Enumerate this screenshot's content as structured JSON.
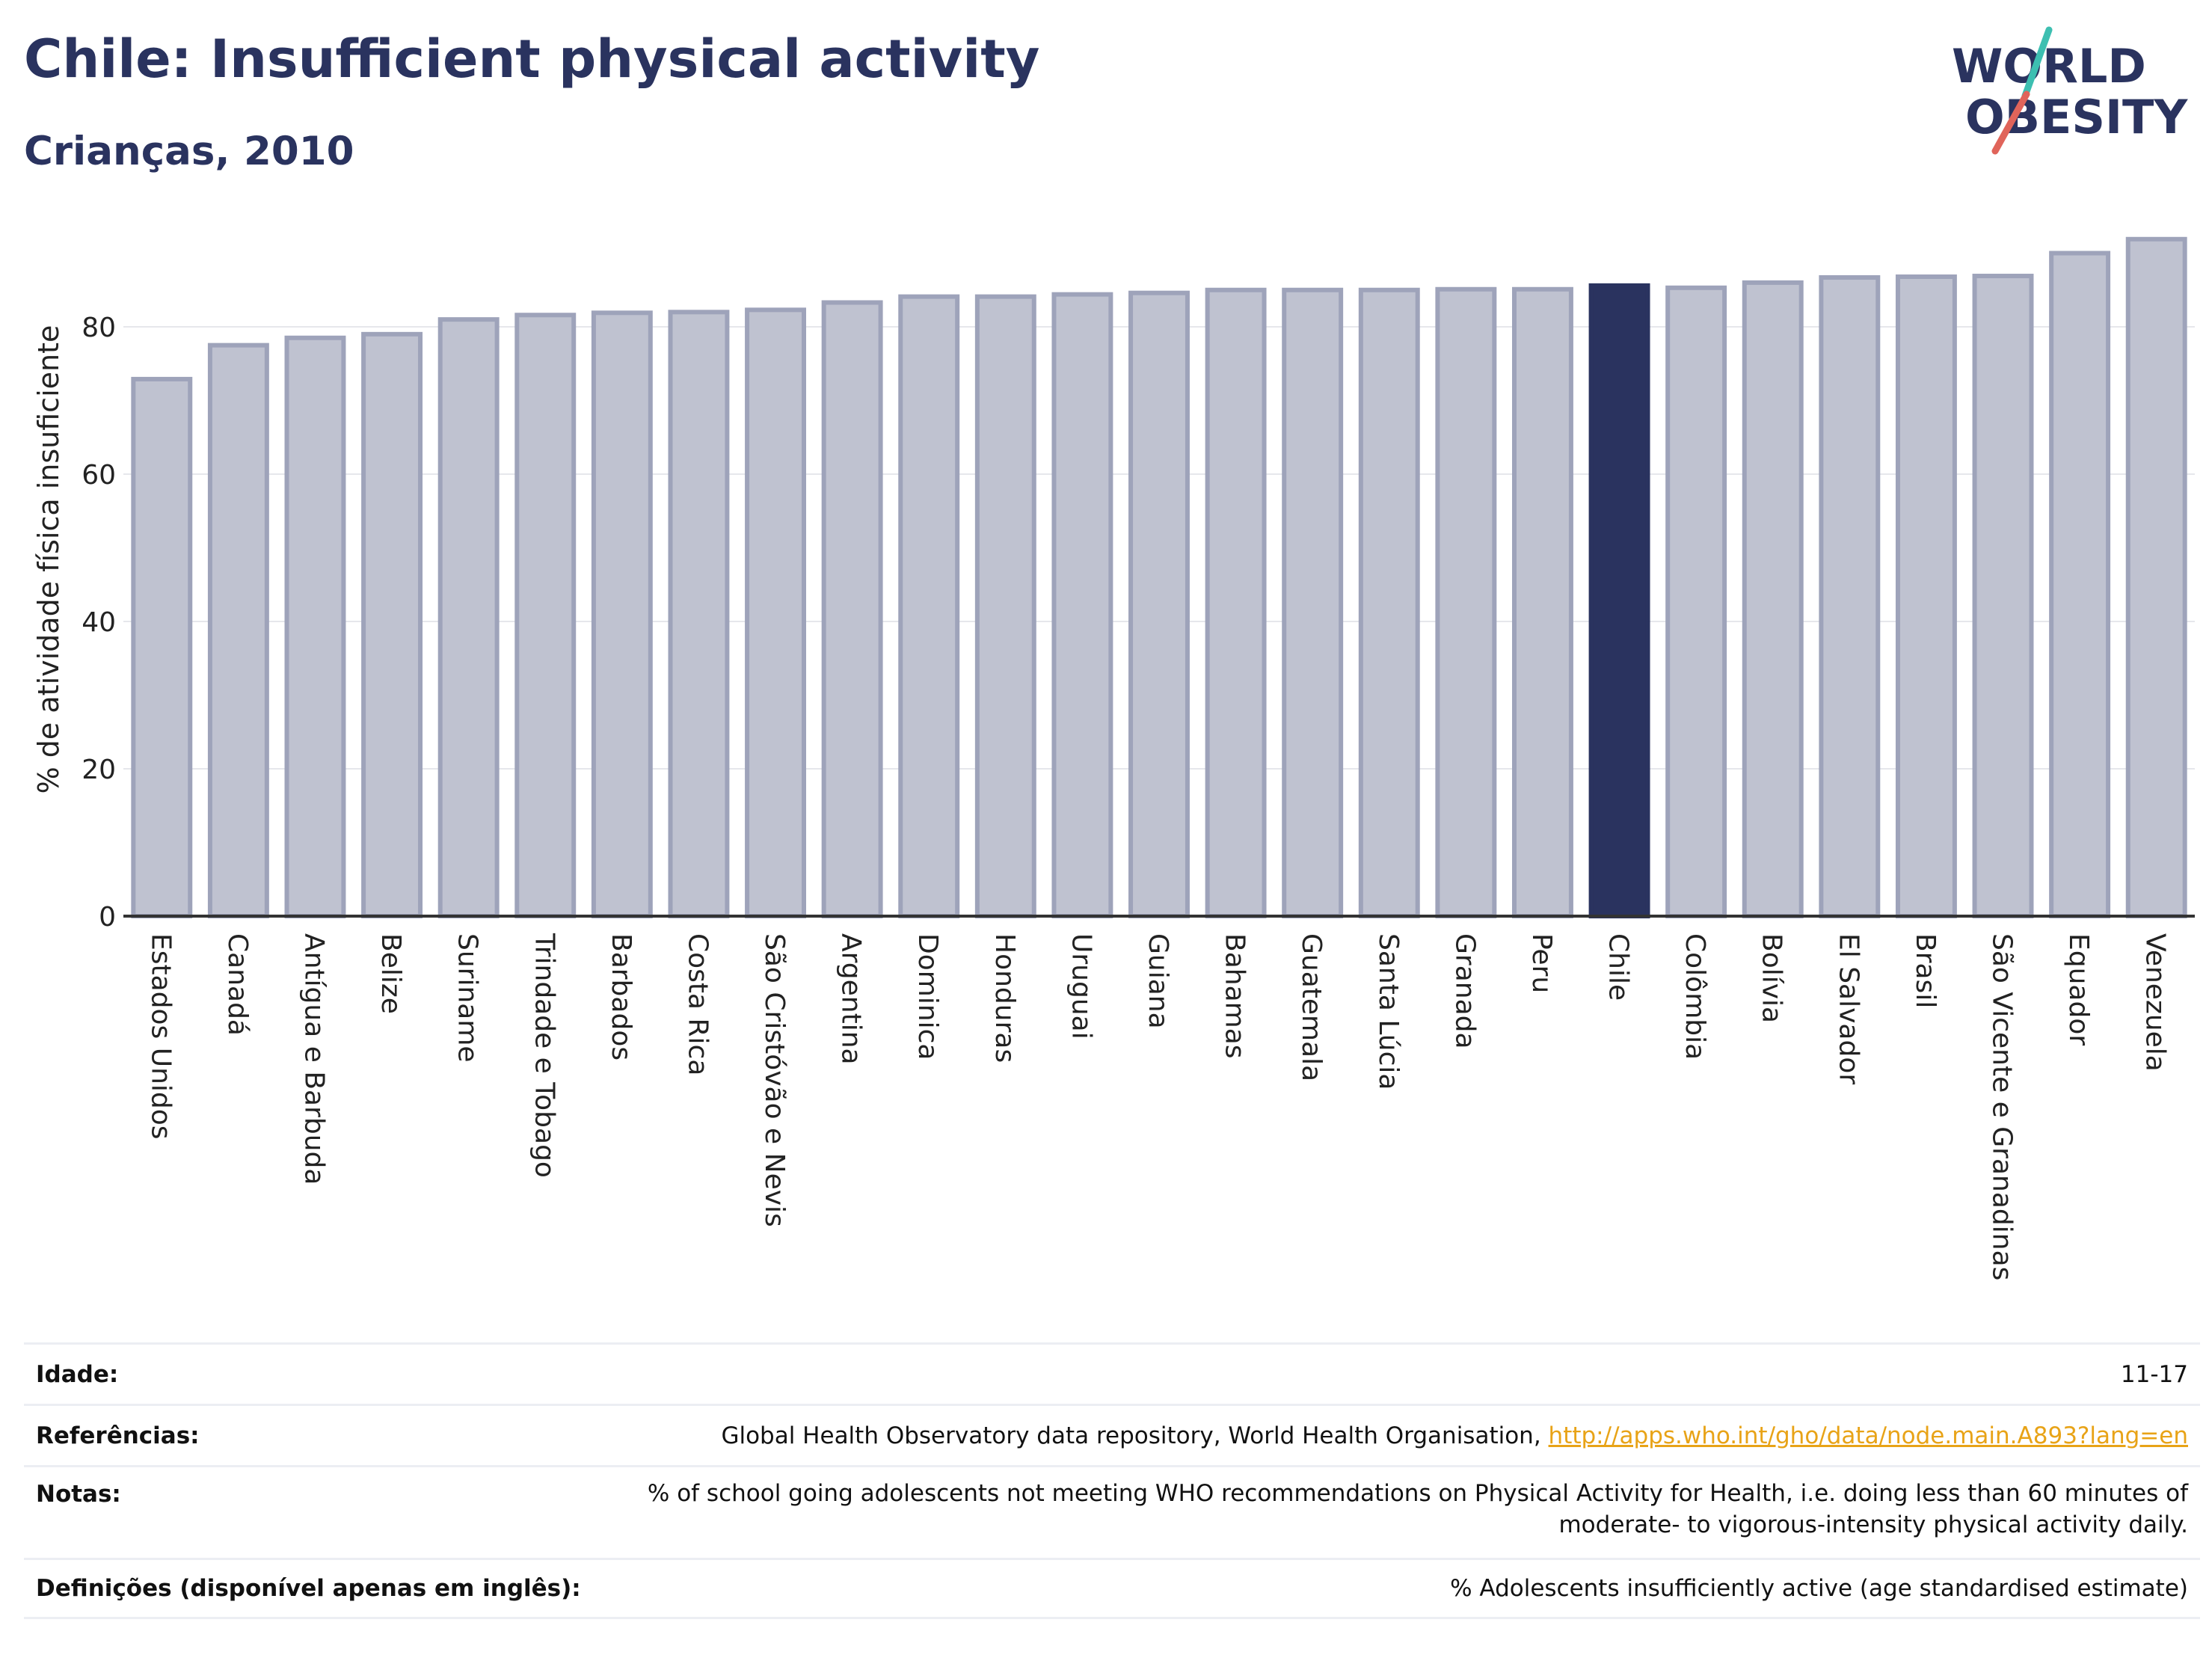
{
  "header": {
    "title": "Chile: Insufficient physical activity",
    "subtitle": "Crianças, 2010"
  },
  "logo": {
    "line1": "WORLD",
    "line2": "OBESITY",
    "colors": {
      "text": "#2a335f",
      "slash_top": "#3dbfb1",
      "slash_bottom": "#e0645a"
    }
  },
  "chart_data": {
    "type": "bar",
    "ylabel": "% de atividade física insuficiente",
    "ylim": [
      0,
      92
    ],
    "yticks": [
      0,
      20,
      40,
      60,
      80
    ],
    "grid": true,
    "highlight": "Chile",
    "colors": {
      "bar": "#bfc2d0",
      "bar_border": "#9ea3ba",
      "highlight": "#2a335f"
    },
    "categories": [
      "Estados Unidos",
      "Canadá",
      "Antígua e Barbuda",
      "Belize",
      "Suriname",
      "Trindade e Tobago",
      "Barbados",
      "Costa Rica",
      "São Cristóvão e Nevis",
      "Argentina",
      "Dominica",
      "Honduras",
      "Uruguai",
      "Guiana",
      "Bahamas",
      "Guatemala",
      "Santa Lúcia",
      "Granada",
      "Peru",
      "Chile",
      "Colômbia",
      "Bolívia",
      "El Salvador",
      "Brasil",
      "São Vicente e Granadinas",
      "Equador",
      "Venezuela"
    ],
    "values": [
      72.9,
      77.5,
      78.5,
      79.0,
      81.0,
      81.6,
      81.9,
      82.0,
      82.3,
      83.3,
      84.1,
      84.1,
      84.4,
      84.6,
      85.0,
      85.0,
      85.0,
      85.1,
      85.1,
      85.6,
      85.3,
      86.0,
      86.7,
      86.8,
      86.9,
      90.0,
      91.9
    ]
  },
  "meta": {
    "age_label": "Idade:",
    "age_value": "11-17",
    "refs_label": "Referências:",
    "refs_text": "Global Health Observatory data repository, World Health Organisation, ",
    "refs_link": "http://apps.who.int/gho/data/node.main.A893?lang=en",
    "notes_label": "Notas:",
    "notes_line1": "% of school going adolescents not meeting WHO recommendations on Physical Activity for Health, i.e. doing less than 60 minutes of",
    "notes_line2": "moderate- to vigorous-intensity physical activity daily.",
    "defs_label": "Definições (disponível apenas em inglês):",
    "defs_value": "% Adolescents insufficiently active (age standardised estimate)"
  }
}
